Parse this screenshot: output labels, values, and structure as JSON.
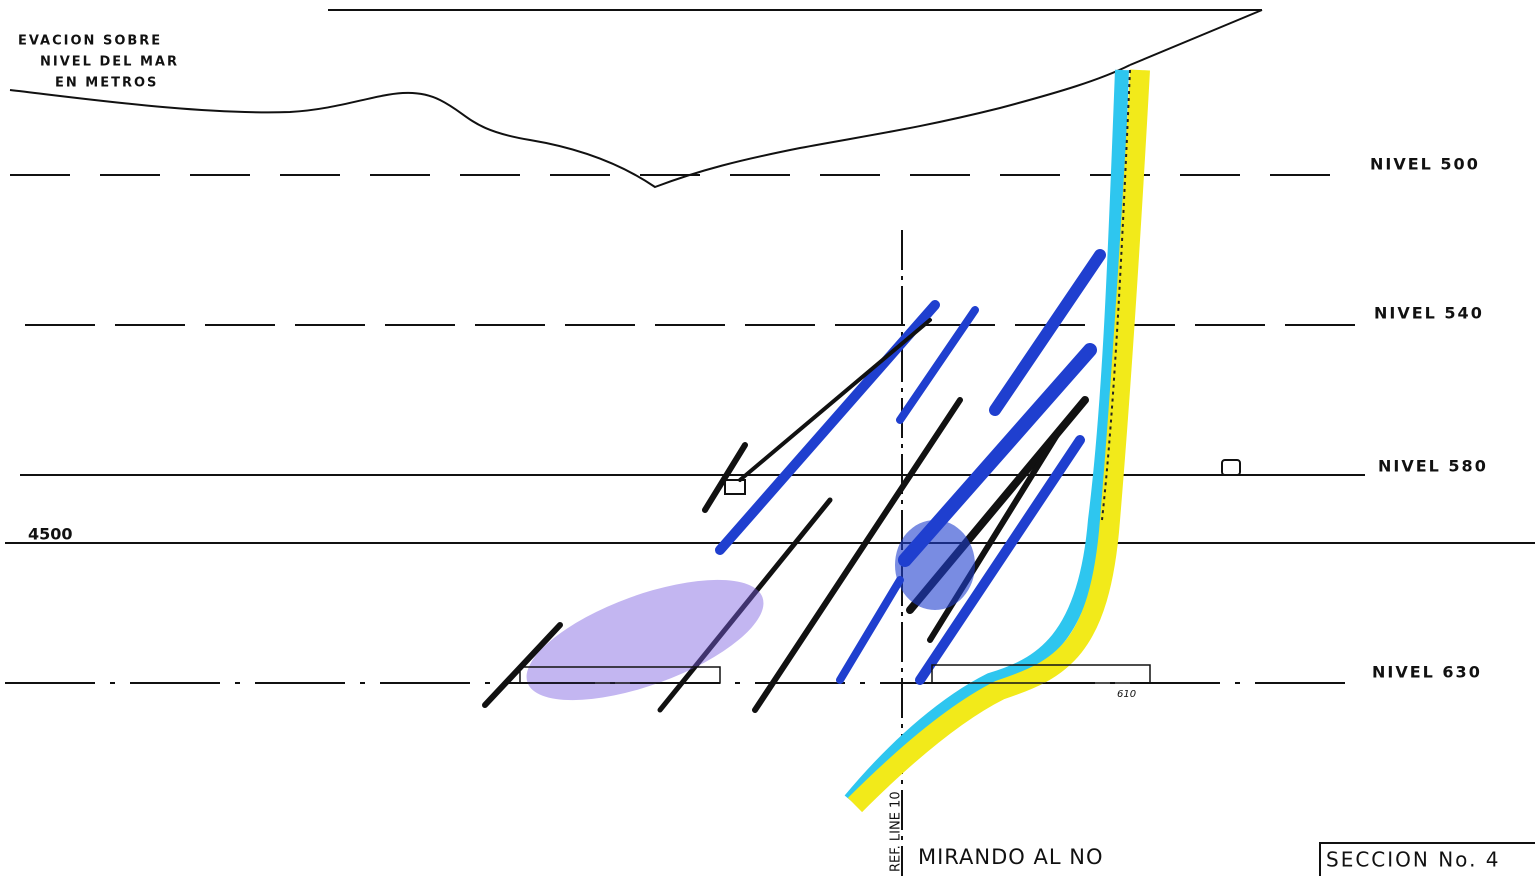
{
  "title": {
    "lines": [
      "EVACION SOBRE",
      "NIVEL DEL MAR",
      "EN METROS"
    ]
  },
  "levels": [
    "NIVEL 500",
    "NIVEL 540",
    "NIVEL 580",
    "NIVEL 630"
  ],
  "grid_label": "4500",
  "ref_line": "REF. LINE 10",
  "view": "MIRANDO AL NO",
  "section": "SECCION No. 4",
  "annotations": [
    "610"
  ]
}
